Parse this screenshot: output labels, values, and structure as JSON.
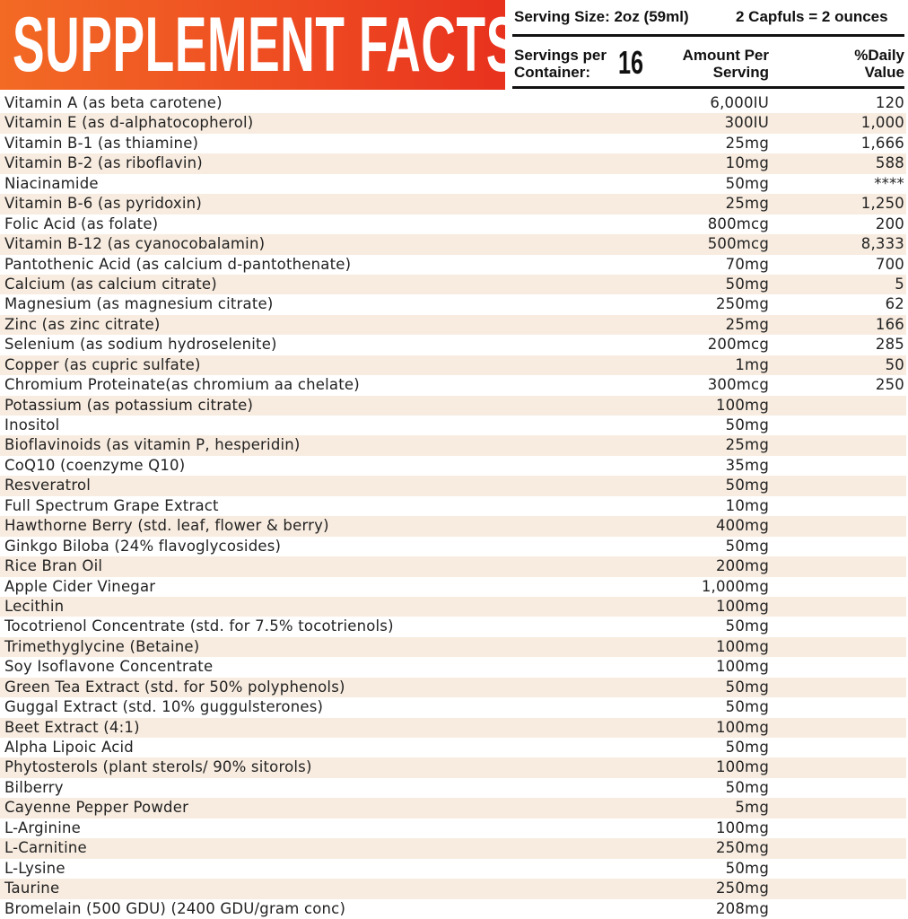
{
  "header": {
    "title": "SUPPLEMENT FACTS",
    "serving_size": "Serving Size: 2oz (59ml)",
    "capfuls": "2 Capfuls = 2 ounces",
    "servings_per_container": "Servings per Container:",
    "servings": "16",
    "amount_per_serving": "Amount Per Serving",
    "daily_value": "%Daily Value"
  },
  "table": {
    "rows": [
      [
        "Vitamin A (as beta carotene)",
        "6,000IU",
        "120"
      ],
      [
        "Vitamin E (as d-alphatocopherol)",
        "300IU",
        "1,000"
      ],
      [
        "Vitamin B-1 (as thiamine)",
        "25mg",
        "1,666"
      ],
      [
        "Vitamin B-2 (as riboflavin)",
        "10mg",
        "588"
      ],
      [
        "Niacinamide",
        "50mg",
        "****"
      ],
      [
        "Vitamin B-6 (as pyridoxin)",
        "25mg",
        "1,250"
      ],
      [
        "Folic Acid (as folate)",
        "800mcg",
        "200"
      ],
      [
        "Vitamin B-12 (as cyanocobalamin)",
        "500mcg",
        "8,333"
      ],
      [
        "Pantothenic Acid (as calcium d-pantothenate)",
        "70mg",
        "700"
      ],
      [
        "Calcium (as calcium citrate)",
        "50mg",
        "5"
      ],
      [
        "Magnesium (as magnesium citrate)",
        "250mg",
        "62"
      ],
      [
        "Zinc (as zinc citrate)",
        "25mg",
        "166"
      ],
      [
        "Selenium (as sodium hydroselenite)",
        "200mcg",
        "285"
      ],
      [
        "Copper (as cupric sulfate)",
        "1mg",
        "50"
      ],
      [
        "Chromium Proteinate(as chromium aa chelate)",
        "300mcg",
        "250"
      ],
      [
        "Potassium (as potassium citrate)",
        "100mg"
      ],
      [
        "Inositol",
        "50mg"
      ],
      [
        "Bioflavinoids (as vitamin P, hesperidin)",
        "25mg"
      ],
      [
        "CoQ10 (coenzyme Q10)",
        "35mg"
      ],
      [
        "Resveratrol",
        "50mg"
      ],
      [
        "Full Spectrum Grape Extract",
        "10mg"
      ],
      [
        "Hawthorne Berry (std. leaf, flower & berry)",
        "400mg"
      ],
      [
        "Ginkgo Biloba (24% flavoglycosides)",
        "50mg"
      ],
      [
        "Rice Bran Oil",
        "200mg"
      ],
      [
        "Apple Cider Vinegar",
        "1,000mg"
      ],
      [
        "Lecithin",
        "100mg"
      ],
      [
        "Tocotrienol Concentrate (std. for 7.5% tocotrienols)",
        "50mg"
      ],
      [
        "Trimethyglycine (Betaine)",
        "100mg"
      ],
      [
        "Soy Isoflavone Concentrate",
        "100mg"
      ],
      [
        "Green Tea Extract (std. for 50% polyphenols)",
        "50mg"
      ],
      [
        "Guggal Extract (std. 10% guggulsterones)",
        "50mg"
      ],
      [
        "Beet Extract (4:1)",
        "100mg"
      ],
      [
        "Alpha Lipoic Acid",
        "50mg"
      ],
      [
        "Phytosterols (plant sterols/ 90% sitorols)",
        "100mg"
      ],
      [
        "Bilberry",
        "50mg"
      ],
      [
        "Cayenne Pepper Powder",
        "5mg"
      ],
      [
        "L-Arginine",
        "100mg"
      ],
      [
        "L-Carnitine",
        "250mg"
      ],
      [
        "L-Lysine",
        "50mg"
      ],
      [
        "Taurine",
        "250mg"
      ],
      [
        "Bromelain (500 GDU) (2400 GDU/gram conc)",
        "208mg"
      ]
    ]
  }
}
